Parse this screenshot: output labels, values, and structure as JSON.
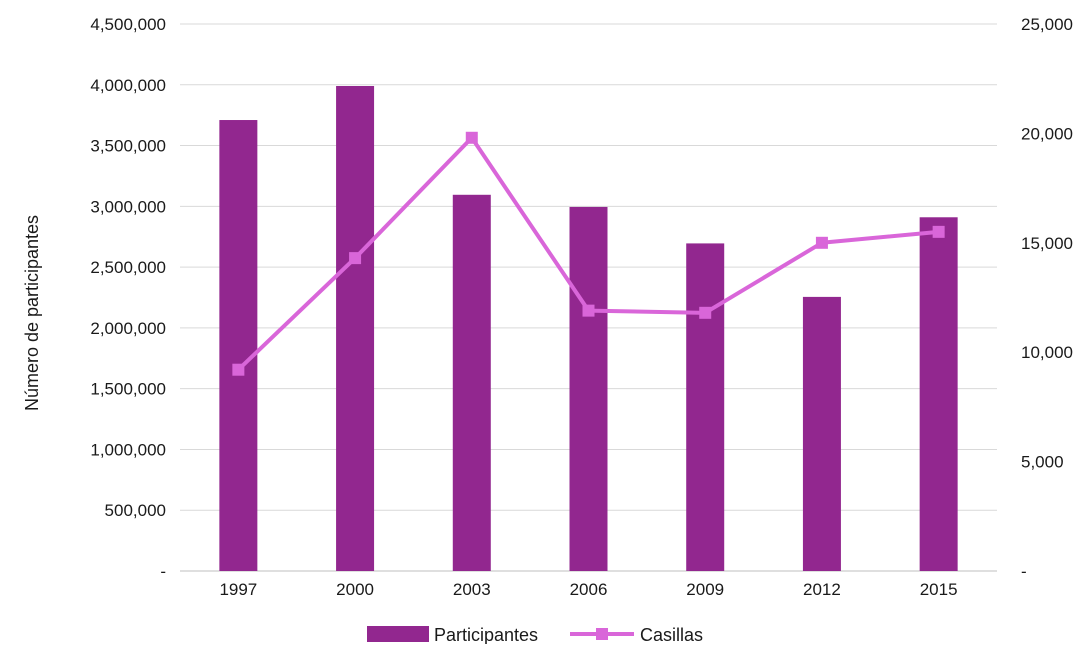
{
  "chart_data": {
    "type": "bar",
    "categories": [
      "1997",
      "2000",
      "2003",
      "2006",
      "2009",
      "2012",
      "2015"
    ],
    "series": [
      {
        "name": "Participantes",
        "type": "bar",
        "axis": "left",
        "color": "#92278f",
        "values": [
          3710000,
          3990000,
          3095000,
          2995000,
          2695000,
          2255000,
          2910000
        ]
      },
      {
        "name": "Casillas",
        "type": "line",
        "axis": "right",
        "color": "#d966d9",
        "marker": "square",
        "values": [
          9200,
          14300,
          19800,
          11900,
          11800,
          15000,
          15500
        ]
      }
    ],
    "ylabel": "Número de participantes",
    "y_left": {
      "range": [
        0,
        4500000
      ],
      "ticks": [
        "-",
        "500,000",
        "1,000,000",
        "1,500,000",
        "2,000,000",
        "2,500,000",
        "3,000,000",
        "3,500,000",
        "4,000,000",
        "4,500,000"
      ]
    },
    "y_right": {
      "range": [
        0,
        25000
      ],
      "ticks": [
        "-",
        "5,000",
        "10,000",
        "15,000",
        "20,000",
        "25,000"
      ]
    },
    "grid": true,
    "legend": "bottom"
  }
}
